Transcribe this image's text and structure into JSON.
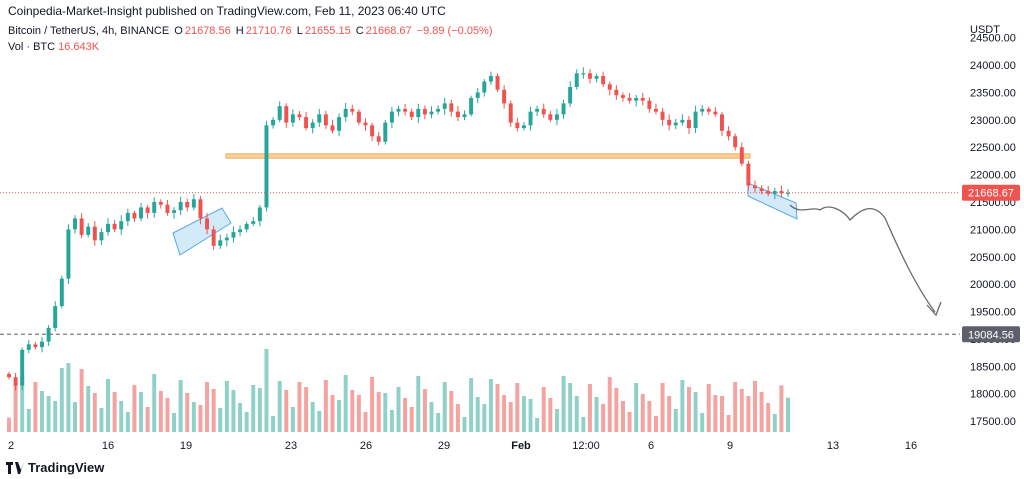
{
  "publisher": "Coinpedia-Market-Insight published on TradingView.com, Feb 11, 2023 06:40 UTC",
  "legend": {
    "symbol": "Bitcoin / TetherUS, 4h, BINANCE",
    "o_label": "O",
    "o": "21678.56",
    "h_label": "H",
    "h": "21710.76",
    "l_label": "L",
    "l": "21655.15",
    "c_label": "C",
    "c": "21668.67",
    "change": "−9.89 (−0.05%)"
  },
  "volume_legend": {
    "label": "Vol · BTC",
    "value": "16.643K"
  },
  "currency": "USDT",
  "price_tag": "21668.67",
  "level_tag": "19084.56",
  "footer": "TradingView",
  "colors": {
    "up": "#26a69a",
    "down": "#ef5350",
    "vol_up": "#8fd0c8",
    "vol_down": "#f4a3a1",
    "zone": "#f9c782",
    "channel": "#b6dcf5",
    "arrow": "#6b6b6b",
    "level": "#787b86"
  },
  "chart_data": {
    "type": "candlestick",
    "timeframe": "4h",
    "y_ticks": [
      24500,
      24000,
      23500,
      23000,
      22500,
      22000,
      21500,
      21000,
      20500,
      20000,
      19500,
      19000,
      18500,
      18000,
      17500
    ],
    "ylim": [
      17300,
      24750
    ],
    "x_labels": [
      "2",
      "16",
      "19",
      "23",
      "26",
      "29",
      "Feb",
      "12:00",
      "6",
      "9",
      "13",
      "16"
    ],
    "last_price": 21668.67,
    "support_level": 19084.56,
    "resistance_zone": [
      22300,
      22380
    ],
    "closes": [
      18300,
      18150,
      18800,
      18900,
      18850,
      18950,
      19200,
      19600,
      20100,
      21000,
      21200,
      20900,
      21050,
      20800,
      20950,
      21100,
      21000,
      21150,
      21300,
      21200,
      21400,
      21300,
      21500,
      21450,
      21300,
      21350,
      21500,
      21400,
      21550,
      21200,
      21000,
      20700,
      20800,
      20850,
      20950,
      21000,
      21100,
      21150,
      21400,
      22900,
      23000,
      23250,
      22950,
      23100,
      23050,
      22850,
      22950,
      23100,
      22900,
      22800,
      23050,
      23200,
      23150,
      22950,
      22900,
      22700,
      22600,
      22950,
      23150,
      23200,
      23150,
      23050,
      23200,
      23100,
      23150,
      23200,
      23300,
      23150,
      23050,
      23100,
      23400,
      23500,
      23700,
      23800,
      23550,
      23300,
      22950,
      22850,
      22900,
      23150,
      23200,
      23100,
      23000,
      23100,
      23300,
      23600,
      23850,
      23850,
      23750,
      23800,
      23650,
      23550,
      23450,
      23400,
      23350,
      23400,
      23350,
      23200,
      23150,
      23000,
      22900,
      22950,
      23000,
      22850,
      23150,
      23200,
      23150,
      23100,
      22800,
      22700,
      22500,
      22200,
      21800,
      21750,
      21700,
      21650,
      21700,
      21660,
      21669
    ],
    "volume_series": "relative bars below price, red on down candles, teal on up candles"
  }
}
